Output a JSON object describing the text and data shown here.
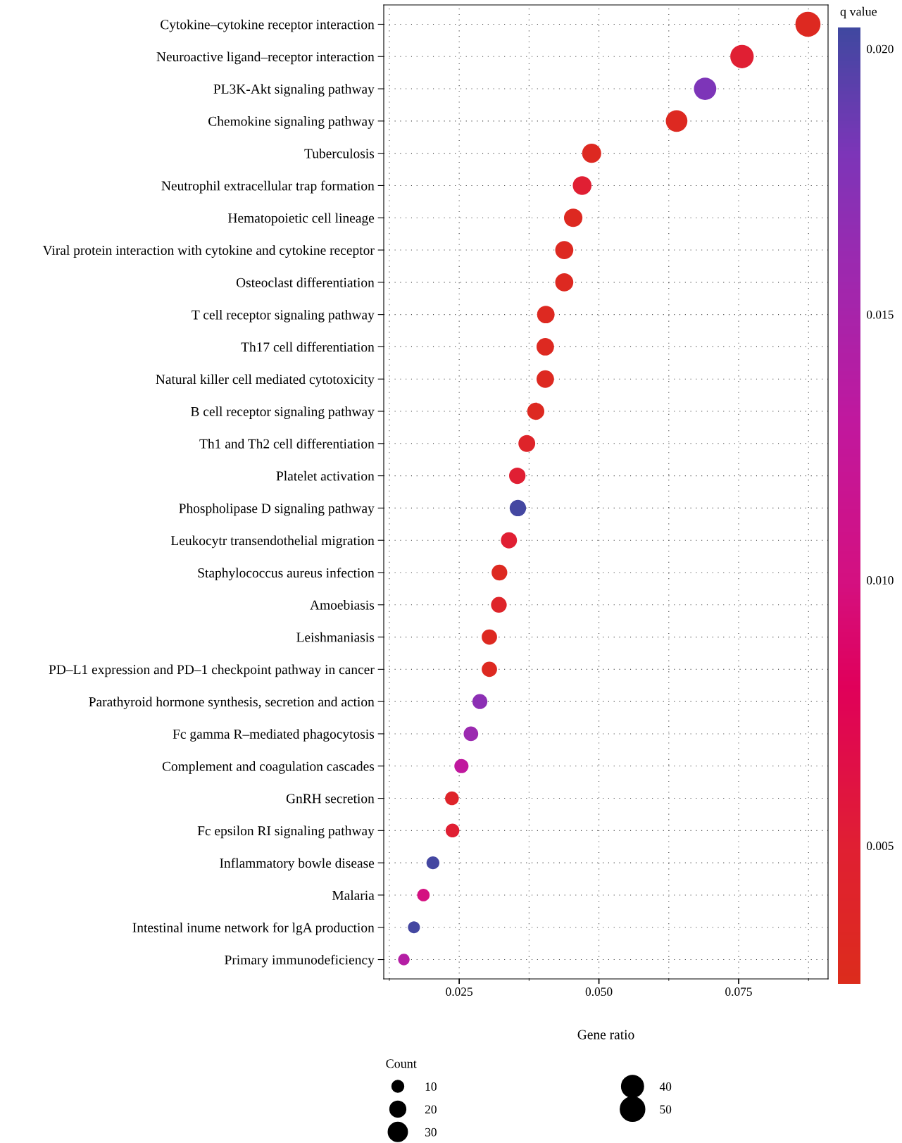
{
  "chart_data": {
    "type": "bubble",
    "xlabel": "Gene ratio",
    "clabel": "q value",
    "legend_title": "Count",
    "categories": [
      "Cytokine–cytokine receptor interaction",
      "Neuroactive ligand–receptor interaction",
      "PL3K-Akt signaling pathway",
      "Chemokine signaling pathway",
      "Tuberculosis",
      "Neutrophil extracellular trap formation",
      "Hematopoietic cell lineage",
      "Viral protein interaction with cytokine and cytokine receptor",
      "Osteoclast differentiation",
      "T cell receptor signaling pathway",
      "Th17 cell differentiation",
      "Natural killer cell mediated cytotoxicity",
      "B cell receptor signaling pathway",
      "Th1 and Th2 cell differentiation",
      "Platelet activation",
      "Phospholipase D signaling pathway",
      "Leukocytr transendothelial migration",
      "Staphylococcus aureus infection",
      "Amoebiasis",
      "Leishmaniasis",
      "PD–L1 expression and PD–1 checkpoint pathway in cancer",
      "Parathyroid hormone synthesis, secretion and action",
      "Fc gamma R–mediated phagocytosis",
      "Complement and coagulation cascades",
      "GnRH secretion",
      "Fc epsilon RI signaling pathway",
      "Inflammatory bowle disease",
      "Malaria",
      "Intestinal inume network for lgA production",
      "Primary immunodeficiency"
    ],
    "values": [
      0.0874,
      0.0756,
      0.069,
      0.0639,
      0.0487,
      0.047,
      0.0454,
      0.0438,
      0.0438,
      0.0405,
      0.0404,
      0.0404,
      0.0387,
      0.0371,
      0.0354,
      0.0355,
      0.0339,
      0.0322,
      0.0321,
      0.0304,
      0.0304,
      0.0287,
      0.0271,
      0.0254,
      0.0237,
      0.0238,
      0.0203,
      0.0186,
      0.0169,
      0.0151
    ],
    "sizes": [
      52,
      45,
      41,
      38,
      29,
      28,
      27,
      26,
      26,
      24,
      24,
      24,
      23,
      22,
      21,
      21,
      20,
      19,
      19,
      18,
      18,
      17,
      16,
      15,
      14,
      14,
      12,
      11,
      10,
      9
    ],
    "cvalues": [
      0.003,
      0.005,
      0.018,
      0.003,
      0.003,
      0.005,
      0.003,
      0.003,
      0.003,
      0.003,
      0.003,
      0.003,
      0.003,
      0.004,
      0.005,
      0.0202,
      0.005,
      0.003,
      0.004,
      0.003,
      0.003,
      0.017,
      0.016,
      0.013,
      0.004,
      0.005,
      0.0202,
      0.01,
      0.0202,
      0.014
    ],
    "size_legend": [
      {
        "value": 10,
        "label": "10"
      },
      {
        "value": 20,
        "label": "20"
      },
      {
        "value": 30,
        "label": "30"
      },
      {
        "value": 40,
        "label": "40"
      },
      {
        "value": 50,
        "label": "50"
      }
    ],
    "orientation": "horizontal",
    "xlim": [
      0.0115,
      0.091
    ],
    "xticks": [
      {
        "value": 0.0125,
        "label": null
      },
      {
        "value": 0.025,
        "label": "0.025"
      },
      {
        "value": 0.0375,
        "label": null
      },
      {
        "value": 0.05,
        "label": "0.050"
      },
      {
        "value": 0.0625,
        "label": null
      },
      {
        "value": 0.075,
        "label": "0.075"
      },
      {
        "value": 0.0875,
        "label": null
      }
    ],
    "clim": [
      0.0024,
      0.0204
    ],
    "cticks": [
      {
        "value": 0.005,
        "label": "0.005"
      },
      {
        "value": 0.01,
        "label": "0.010"
      },
      {
        "value": 0.015,
        "label": "0.015"
      },
      {
        "value": 0.02,
        "label": "0.020"
      }
    ],
    "grid": true,
    "marker": "circle"
  }
}
